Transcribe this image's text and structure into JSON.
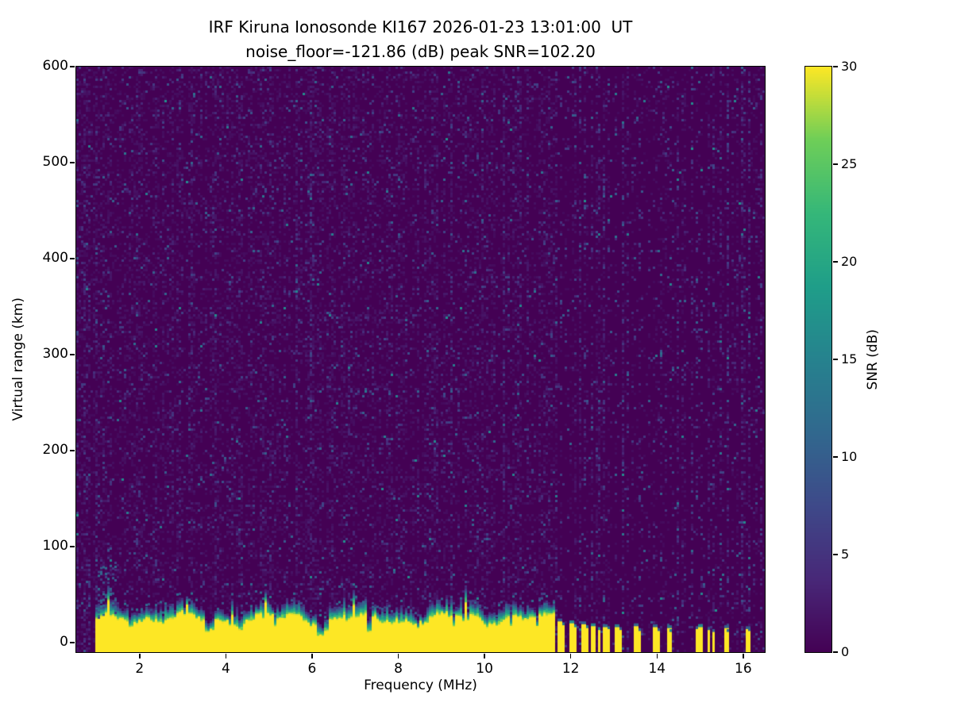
{
  "chart_data": {
    "type": "heatmap",
    "title_line1": "IRF Kiruna Ionosonde KI167 2026-01-23 13:01:00  UT",
    "title_line2": "noise_floor=-121.86 (dB) peak SNR=102.20",
    "station": "IRF Kiruna",
    "instrument": "Ionosonde KI167",
    "datetime_ut": "2026-01-23 13:01:00 UT",
    "noise_floor_db": -121.86,
    "peak_snr_db": 102.2,
    "xlabel": "Frequency (MHz)",
    "ylabel": "Virtual range (km)",
    "xlim": [
      0.53,
      16.5
    ],
    "ylim": [
      -10,
      600
    ],
    "xticks": [
      2,
      4,
      6,
      8,
      10,
      12,
      14,
      16
    ],
    "yticks": [
      0,
      100,
      200,
      300,
      400,
      500,
      600
    ],
    "colorbar": {
      "label": "SNR (dB)",
      "min": 0,
      "max": 30,
      "ticks": [
        0,
        5,
        10,
        15,
        20,
        25,
        30
      ],
      "colormap": "viridis"
    },
    "viridis_stops": [
      [
        0,
        68,
        1,
        84
      ],
      [
        0.125,
        72,
        40,
        120
      ],
      [
        0.25,
        62,
        73,
        137
      ],
      [
        0.375,
        49,
        104,
        142
      ],
      [
        0.5,
        38,
        130,
        142
      ],
      [
        0.625,
        31,
        158,
        137
      ],
      [
        0.75,
        53,
        183,
        121
      ],
      [
        0.875,
        110,
        206,
        88
      ],
      [
        1,
        253,
        231,
        37
      ]
    ],
    "features": {
      "seed": 11,
      "description": "Dark purple (near 0 dB SNR) noise background with sparse blue/teal speckle; a saturated yellow echo band (~30 dB) from the bottom of the plot (-10 km) up to roughly 25-35 km virtual range spans ~0.95-11.6 MHz, topped by a green-teal fringe, with dark interference notches cut into it; above ~11.6 MHz the echo breaks into narrow intermittent yellow columns and faint vertical interference noise stripes out to 16.5 MHz.",
      "band": {
        "start_mhz": 0.95,
        "end_mhz": 11.63,
        "top_km_mean": 24,
        "snr_db": 30
      },
      "notches": [
        [
          3.55,
          0.05,
          11
        ],
        [
          3.68,
          0.04,
          13
        ],
        [
          4.33,
          0.05,
          13
        ],
        [
          5.15,
          0.03,
          17
        ],
        [
          6.21,
          0.08,
          7
        ],
        [
          6.33,
          0.04,
          12
        ],
        [
          7.33,
          0.05,
          11
        ],
        [
          8.45,
          0.04,
          15
        ],
        [
          9.3,
          0.03,
          17
        ],
        [
          10.05,
          0.04,
          15
        ],
        [
          10.62,
          0.03,
          16
        ],
        [
          11.2,
          0.03,
          16
        ]
      ],
      "sporadic_echoes": [
        [
          11.7,
          22,
          2
        ],
        [
          11.83,
          18,
          1
        ],
        [
          11.96,
          20,
          2
        ],
        [
          12.09,
          16,
          1
        ],
        [
          12.22,
          19,
          2
        ],
        [
          12.35,
          15,
          1
        ],
        [
          12.48,
          17,
          2
        ],
        [
          12.61,
          13,
          1
        ],
        [
          12.74,
          16,
          2
        ],
        [
          12.87,
          14,
          1
        ],
        [
          13.0,
          16,
          2
        ],
        [
          13.12,
          13,
          1
        ],
        [
          13.47,
          17,
          2
        ],
        [
          13.56,
          12,
          1
        ],
        [
          13.9,
          16,
          2
        ],
        [
          13.99,
          12,
          1
        ],
        [
          14.21,
          15,
          2
        ],
        [
          14.3,
          11,
          1
        ],
        [
          14.87,
          14,
          1
        ],
        [
          14.96,
          16,
          2
        ],
        [
          15.2,
          13,
          1
        ],
        [
          15.28,
          11,
          1
        ],
        [
          15.55,
          15,
          2
        ],
        [
          15.64,
          11,
          1
        ],
        [
          16.05,
          14,
          2
        ],
        [
          16.14,
          12,
          1
        ]
      ],
      "noise_stripes": {
        "start_mhz": 11.66,
        "end_mhz": 16.5,
        "min_spacing_mhz": 0.07,
        "max_spacing_mhz": 0.2
      }
    }
  }
}
